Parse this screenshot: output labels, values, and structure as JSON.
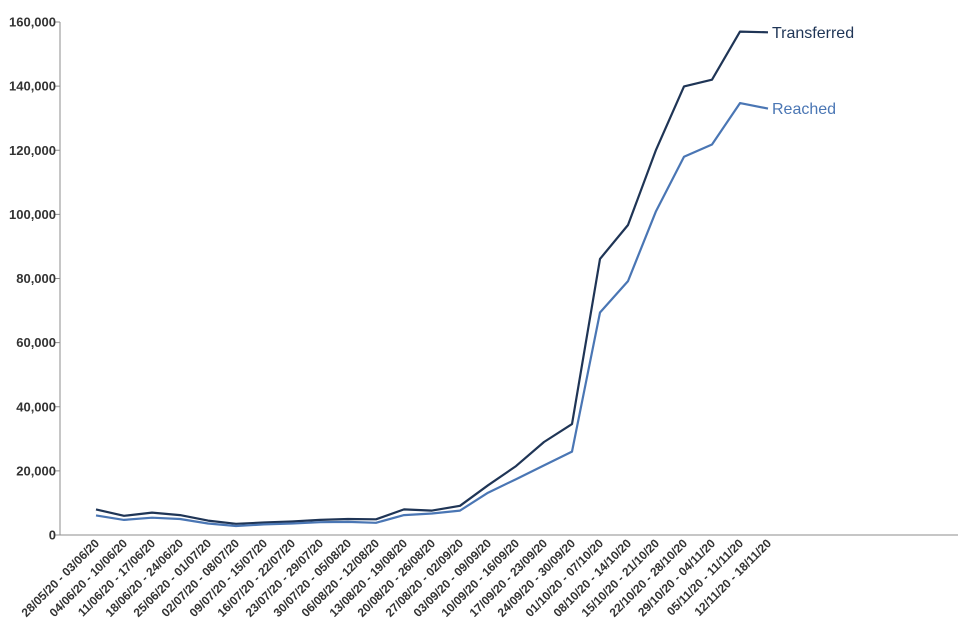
{
  "chart_data": {
    "type": "line",
    "title": "",
    "xlabel": "",
    "ylabel": "",
    "ylim": [
      0,
      160000
    ],
    "yticks": [
      0,
      20000,
      40000,
      60000,
      80000,
      100000,
      120000,
      140000,
      160000
    ],
    "ytick_labels": [
      "0",
      "20,000",
      "40,000",
      "60,000",
      "80,000",
      "100,000",
      "120,000",
      "140,000",
      "160,000"
    ],
    "grid": false,
    "legend": "none",
    "categories": [
      "28/05/20 - 03/06/20",
      "04/06/20 - 10/06/20",
      "11/06/20 - 17/06/20",
      "18/06/20 - 24/06/20",
      "25/06/20 - 01/07/20",
      "02/07/20 - 08/07/20",
      "09/07/20 - 15/07/20",
      "16/07/20 - 22/07/20",
      "23/07/20 - 29/07/20",
      "30/07/20 - 05/08/20",
      "06/08/20 - 12/08/20",
      "13/08/20 - 19/08/20",
      "20/08/20 - 26/08/20",
      "27/08/20 - 02/09/20",
      "03/09/20 - 09/09/20",
      "10/09/20 - 16/09/20",
      "17/09/20 - 23/09/20",
      "24/09/20 - 30/09/20",
      "01/10/20 - 07/10/20",
      "08/10/20 - 14/10/20",
      "15/10/20 - 21/10/20",
      "22/10/20 - 28/10/20",
      "29/10/20 - 04/11/20",
      "05/11/20 - 11/11/20",
      "12/11/20 - 18/11/20"
    ],
    "series": [
      {
        "name": "Transferred",
        "color": "#1f3556",
        "values": [
          8000,
          6000,
          7000,
          6200,
          4500,
          3500,
          3900,
          4200,
          4700,
          5000,
          4900,
          8000,
          7600,
          9100,
          15500,
          21500,
          29000,
          34600,
          86100,
          96700,
          120100,
          139900,
          142000,
          157000,
          156800
        ]
      },
      {
        "name": "Reached",
        "color": "#4a76b4",
        "values": [
          6100,
          4700,
          5400,
          5000,
          3600,
          2800,
          3300,
          3600,
          4000,
          4100,
          3800,
          6200,
          6700,
          7600,
          13200,
          17400,
          21700,
          26000,
          69400,
          79200,
          101000,
          118000,
          121800,
          134700,
          133000
        ]
      }
    ]
  }
}
